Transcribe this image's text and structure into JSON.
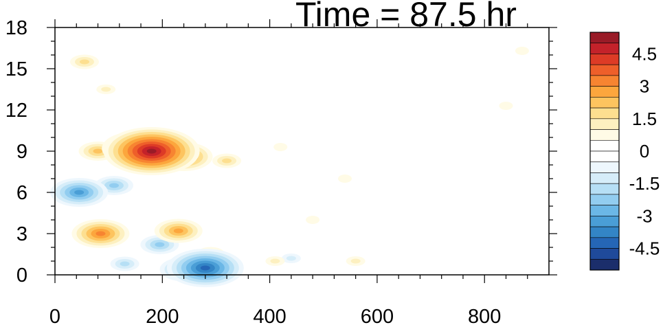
{
  "chart_data": {
    "type": "heatmap",
    "title": "Time = 87.5 hr",
    "xlabel": "",
    "ylabel": "",
    "xlim": [
      0,
      920
    ],
    "ylim": [
      0,
      18
    ],
    "x_ticks": [
      0,
      200,
      400,
      600,
      800
    ],
    "y_ticks": [
      0,
      3,
      6,
      9,
      12,
      15,
      18
    ],
    "colorbar": {
      "levels": [
        -5.5,
        -5,
        -4.5,
        -4,
        -3.5,
        -3,
        -2.5,
        -2,
        -1.5,
        -1,
        -0.5,
        0,
        0.5,
        1,
        1.5,
        2,
        2.5,
        3,
        3.5,
        4,
        4.5,
        5,
        5.5
      ],
      "labeled_levels": [
        4.5,
        3,
        1.5,
        0,
        -1.5,
        -3,
        -4.5
      ],
      "labels": [
        "4.5",
        "3",
        "1.5",
        "0",
        "-1.5",
        "-3",
        "-4.5"
      ],
      "colors": [
        "#1b2e6b",
        "#1f4a9a",
        "#2566b6",
        "#3385c6",
        "#4a9ed6",
        "#6bb7e6",
        "#92cdf0",
        "#b6dff5",
        "#d6edf9",
        "#eef7fd",
        "#ffffff",
        "#ffffff",
        "#fffbe6",
        "#fdf0c0",
        "#fddf90",
        "#fdc45f",
        "#fca63d",
        "#f78431",
        "#ee5f2a",
        "#dd3b26",
        "#c4222a",
        "#991b27"
      ]
    },
    "features": [
      {
        "x": 180,
        "y": 9.0,
        "value": 5.0
      },
      {
        "x": 150,
        "y": 9.2,
        "value": 3.5
      },
      {
        "x": 240,
        "y": 8.6,
        "value": 3.0
      },
      {
        "x": 320,
        "y": 8.3,
        "value": 1.5
      },
      {
        "x": 80,
        "y": 9.0,
        "value": 2.0
      },
      {
        "x": 85,
        "y": 3.0,
        "value": 3.0
      },
      {
        "x": 230,
        "y": 3.2,
        "value": 2.5
      },
      {
        "x": 290,
        "y": 1.5,
        "value": 1.5
      },
      {
        "x": 45,
        "y": 6.0,
        "value": -3.0
      },
      {
        "x": 110,
        "y": 6.5,
        "value": -2.0
      },
      {
        "x": 195,
        "y": 2.2,
        "value": -2.0
      },
      {
        "x": 280,
        "y": 0.5,
        "value": -4.0
      },
      {
        "x": 240,
        "y": 0.4,
        "value": -2.5
      },
      {
        "x": 130,
        "y": 0.8,
        "value": -1.5
      },
      {
        "x": 440,
        "y": 1.2,
        "value": -1.0
      },
      {
        "x": 55,
        "y": 15.5,
        "value": 1.5
      },
      {
        "x": 95,
        "y": 13.5,
        "value": 1.0
      },
      {
        "x": 420,
        "y": 9.3,
        "value": 0.6
      },
      {
        "x": 540,
        "y": 7.0,
        "value": 0.6
      },
      {
        "x": 480,
        "y": 4.0,
        "value": 0.6
      },
      {
        "x": 870,
        "y": 16.3,
        "value": 0.6
      },
      {
        "x": 840,
        "y": 12.3,
        "value": 0.6
      },
      {
        "x": 410,
        "y": 1.0,
        "value": 1.0
      },
      {
        "x": 560,
        "y": 1.0,
        "value": 1.0
      }
    ]
  }
}
